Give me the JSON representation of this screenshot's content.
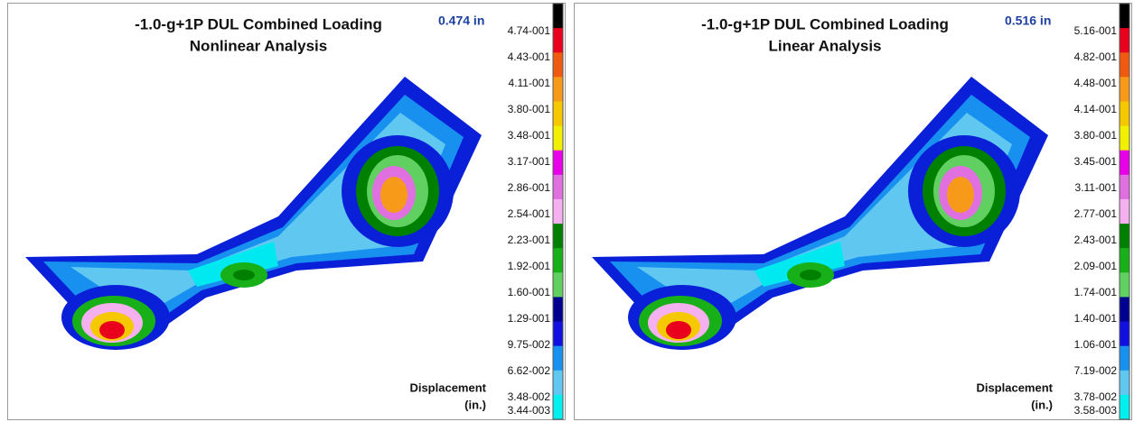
{
  "panels": [
    {
      "title_lines": [
        "-1.0-g+1P DUL Combined Loading",
        "Nonlinear Analysis"
      ],
      "max_label": "0.474 in",
      "legend": {
        "labels": [
          "4.74-001",
          "4.43-001",
          "4.11-001",
          "3.80-001",
          "3.48-001",
          "3.17-001",
          "2.86-001",
          "2.54-001",
          "2.23-001",
          "1.92-001",
          "1.60-001",
          "1.29-001",
          "9.75-002",
          "6.62-002",
          "3.48-002",
          "3.44-003"
        ],
        "colors": [
          "#000000",
          "#e8001c",
          "#f05a10",
          "#f79a1a",
          "#f5c800",
          "#f0f000",
          "#e800e8",
          "#e070e0",
          "#f5b0f0",
          "#008000",
          "#18b018",
          "#60d060",
          "#000090",
          "#1010e0",
          "#1890f0",
          "#60c8f0",
          "#00f0f0"
        ]
      },
      "quantity_label": "Displacement",
      "unit_label": "(in.)"
    },
    {
      "title_lines": [
        "-1.0-g+1P DUL Combined Loading",
        "Linear Analysis"
      ],
      "max_label": "0.516 in",
      "legend": {
        "labels": [
          "5.16-001",
          "4.82-001",
          "4.48-001",
          "4.14-001",
          "3.80-001",
          "3.45-001",
          "3.11-001",
          "2.77-001",
          "2.43-001",
          "2.09-001",
          "1.74-001",
          "1.40-001",
          "1.06-001",
          "7.19-002",
          "3.78-002",
          "3.58-003"
        ],
        "colors": [
          "#000000",
          "#e8001c",
          "#f05a10",
          "#f79a1a",
          "#f5c800",
          "#f0f000",
          "#e800e8",
          "#e070e0",
          "#f5b0f0",
          "#008000",
          "#18b018",
          "#60d060",
          "#000090",
          "#1010e0",
          "#1890f0",
          "#60c8f0",
          "#00f0f0"
        ]
      },
      "quantity_label": "Displacement",
      "unit_label": "(in.)"
    }
  ]
}
